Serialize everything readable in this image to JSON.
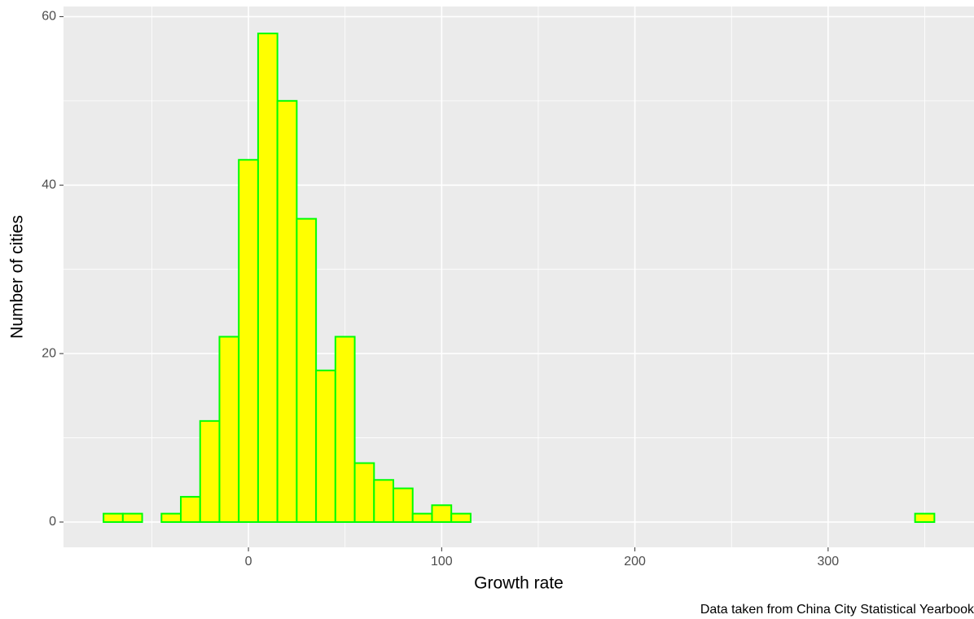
{
  "chart_data": {
    "type": "histogram",
    "x_label": "Growth rate",
    "y_label": "Number of cities",
    "caption": "Data taken from China City Statistical Yearbook",
    "bins": [
      -75,
      -65,
      -55,
      -45,
      -35,
      -25,
      -15,
      -5,
      5,
      15,
      25,
      35,
      45,
      55,
      65,
      75,
      85,
      95,
      105,
      115,
      125,
      135,
      145,
      155,
      165,
      175,
      185,
      195,
      205,
      215,
      225,
      235,
      245,
      255,
      265,
      275,
      285,
      295,
      305,
      315,
      325,
      335,
      345,
      355
    ],
    "values": [
      1,
      1,
      0,
      1,
      3,
      12,
      22,
      43,
      58,
      50,
      36,
      18,
      22,
      7,
      5,
      4,
      1,
      2,
      1,
      0,
      0,
      0,
      0,
      0,
      0,
      0,
      0,
      0,
      0,
      0,
      0,
      0,
      0,
      0,
      0,
      0,
      0,
      0,
      0,
      0,
      0,
      0,
      1
    ],
    "color": "#ffff00",
    "edge_color": "#00ff00",
    "xlim": [
      -95.7,
      375.5
    ],
    "ylim": [
      -3,
      61.2
    ],
    "xticks": [
      0,
      100,
      200,
      300
    ],
    "yticks": [
      0,
      20,
      40,
      60
    ],
    "grid": true
  }
}
